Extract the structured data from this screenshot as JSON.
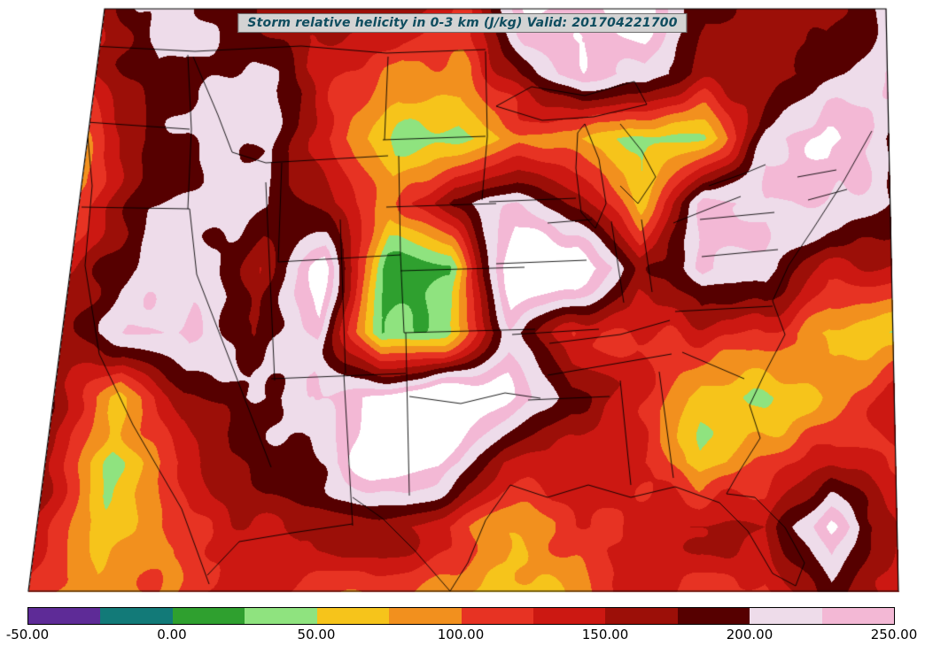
{
  "title": {
    "text": "Storm relative helicity in 0-3 km (J/kg) Valid: 201704221700",
    "color": "#0f4d5f",
    "background": "#d3d3d3"
  },
  "chart_data": {
    "type": "heatmap",
    "title": "Storm relative helicity in 0-3 km (J/kg) Valid: 201704221700",
    "variable": "Storm relative helicity in 0-3 km",
    "units": "J/kg",
    "valid": "201704221700",
    "region": "CONUS filled-contour map with state borders",
    "colorbar_tick_labels": [
      "-50.00",
      "0.00",
      "50.00",
      "100.00",
      "150.00",
      "200.00",
      "250.00"
    ],
    "contour_levels": [
      -50,
      -25,
      0,
      25,
      50,
      75,
      100,
      125,
      150,
      175,
      200,
      225,
      250
    ],
    "band_colors": [
      "#5e2b97",
      "#127a78",
      "#2fa02f",
      "#8fe37f",
      "#f6c41b",
      "#f2901e",
      "#e73323",
      "#cc1812",
      "#9c0f08",
      "#560000",
      "#eedcea",
      "#f3b8d5"
    ],
    "over_color": "#ffffff",
    "legend_position": "bottom",
    "field_grid_jkg": [
      [
        150,
        220,
        180,
        160,
        150,
        120,
        100,
        260,
        270,
        250,
        140,
        150,
        170,
        260
      ],
      [
        140,
        200,
        190,
        170,
        130,
        70,
        80,
        180,
        240,
        230,
        150,
        130,
        180,
        240
      ],
      [
        130,
        180,
        195,
        185,
        80,
        40,
        30,
        60,
        50,
        20,
        60,
        230,
        250,
        160
      ],
      [
        140,
        190,
        195,
        190,
        120,
        60,
        180,
        190,
        130,
        60,
        250,
        240,
        200,
        150
      ],
      [
        150,
        185,
        190,
        150,
        240,
        20,
        10,
        260,
        270,
        140,
        250,
        230,
        130,
        100
      ],
      [
        160,
        190,
        185,
        120,
        230,
        20,
        40,
        200,
        120,
        130,
        140,
        120,
        50,
        40
      ],
      [
        170,
        40,
        130,
        170,
        200,
        260,
        270,
        240,
        150,
        140,
        50,
        40,
        70,
        120
      ],
      [
        150,
        40,
        100,
        160,
        190,
        260,
        250,
        150,
        130,
        120,
        10,
        60,
        130,
        140
      ],
      [
        140,
        60,
        120,
        150,
        160,
        130,
        110,
        120,
        140,
        150,
        130,
        100,
        250,
        160
      ],
      [
        120,
        80,
        100,
        120,
        90,
        80,
        100,
        90,
        110,
        120,
        110,
        90,
        200,
        140
      ]
    ]
  }
}
